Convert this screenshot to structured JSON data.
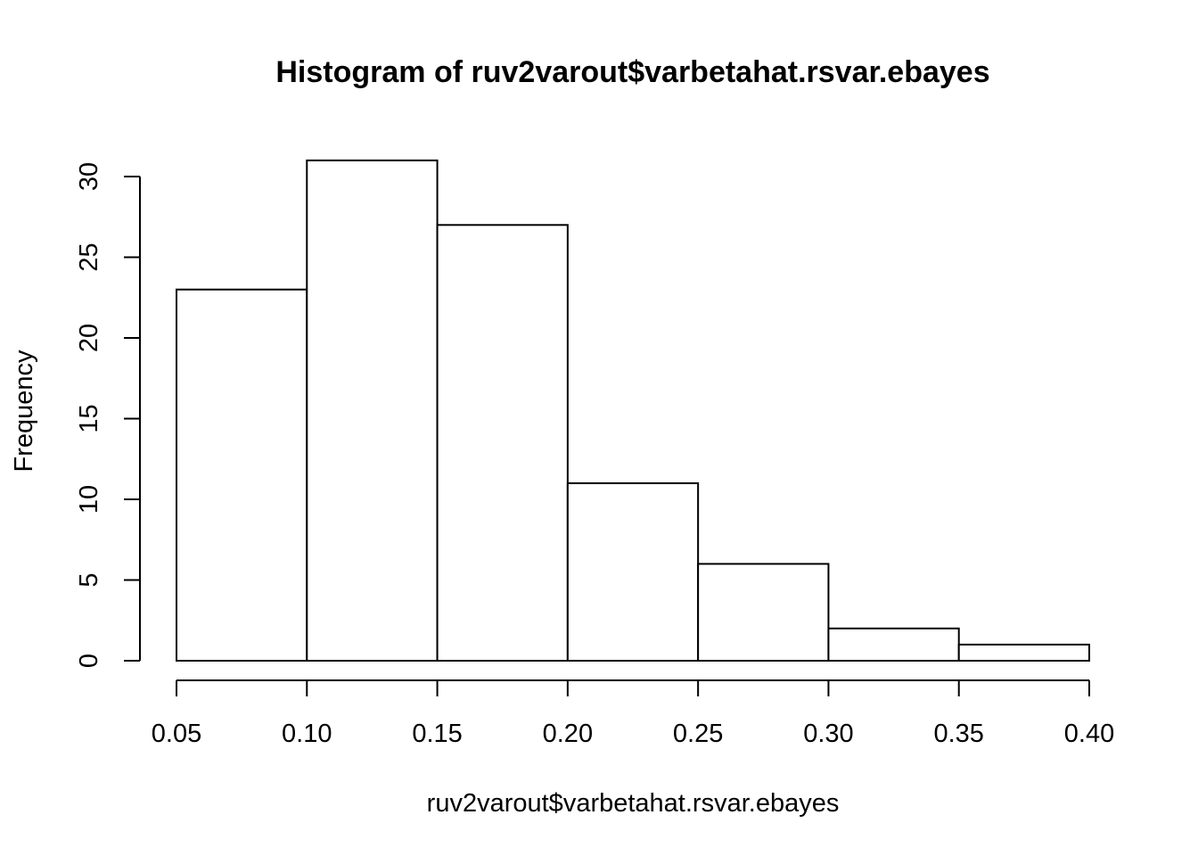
{
  "chart_data": {
    "type": "bar",
    "title": "Histogram of ruv2varout$varbetahat.rsvar.ebayes",
    "xlabel": "ruv2varout$varbetahat.rsvar.ebayes",
    "ylabel": "Frequency",
    "bins": [
      {
        "start": 0.05,
        "end": 0.1,
        "count": 23
      },
      {
        "start": 0.1,
        "end": 0.15,
        "count": 31
      },
      {
        "start": 0.15,
        "end": 0.2,
        "count": 27
      },
      {
        "start": 0.2,
        "end": 0.25,
        "count": 11
      },
      {
        "start": 0.25,
        "end": 0.3,
        "count": 6
      },
      {
        "start": 0.3,
        "end": 0.35,
        "count": 2
      },
      {
        "start": 0.35,
        "end": 0.4,
        "count": 1
      }
    ],
    "xlim": [
      0.05,
      0.4
    ],
    "ylim": [
      0,
      30
    ],
    "x_ticks": [
      {
        "value": 0.05,
        "label": "0.05"
      },
      {
        "value": 0.1,
        "label": "0.10"
      },
      {
        "value": 0.15,
        "label": "0.15"
      },
      {
        "value": 0.2,
        "label": "0.20"
      },
      {
        "value": 0.25,
        "label": "0.25"
      },
      {
        "value": 0.3,
        "label": "0.30"
      },
      {
        "value": 0.35,
        "label": "0.35"
      },
      {
        "value": 0.4,
        "label": "0.40"
      }
    ],
    "y_ticks": [
      {
        "value": 0,
        "label": "0"
      },
      {
        "value": 5,
        "label": "5"
      },
      {
        "value": 10,
        "label": "10"
      },
      {
        "value": 15,
        "label": "15"
      },
      {
        "value": 20,
        "label": "20"
      },
      {
        "value": 25,
        "label": "25"
      },
      {
        "value": 30,
        "label": "30"
      }
    ],
    "grid": false,
    "legend": "none",
    "bar_fill": "#ffffff",
    "bar_stroke": "#000000"
  }
}
